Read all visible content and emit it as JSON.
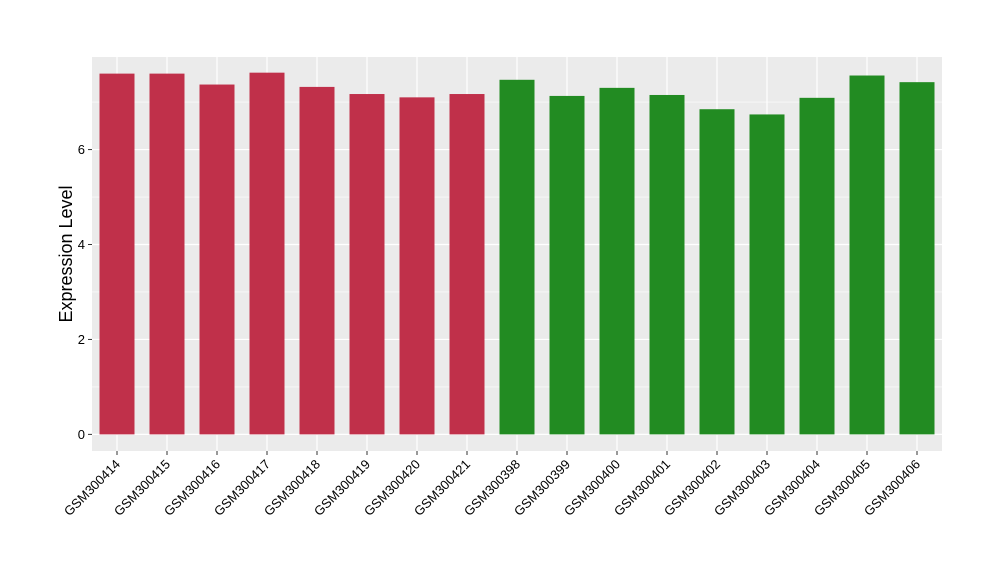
{
  "chart_data": {
    "type": "bar",
    "ylabel": "Expression Level",
    "xlabel": "",
    "ylim": [
      -0.35,
      7.95
    ],
    "yticks": [
      0,
      2,
      4,
      6
    ],
    "grid": true,
    "panel_background": "#ebebeb",
    "gridline_color": "#ffffff",
    "categories": [
      "GSM300414",
      "GSM300415",
      "GSM300416",
      "GSM300417",
      "GSM300418",
      "GSM300419",
      "GSM300420",
      "GSM300421",
      "GSM300398",
      "GSM300399",
      "GSM300400",
      "GSM300401",
      "GSM300402",
      "GSM300403",
      "GSM300404",
      "GSM300405",
      "GSM300406"
    ],
    "values": [
      7.6,
      7.6,
      7.37,
      7.62,
      7.32,
      7.17,
      7.1,
      7.17,
      7.47,
      7.13,
      7.3,
      7.15,
      6.85,
      6.74,
      7.09,
      7.56,
      7.42
    ],
    "bar_colors": [
      "#c0304a",
      "#c0304a",
      "#c0304a",
      "#c0304a",
      "#c0304a",
      "#c0304a",
      "#c0304a",
      "#c0304a",
      "#228b22",
      "#228b22",
      "#228b22",
      "#228b22",
      "#228b22",
      "#228b22",
      "#228b22",
      "#228b22",
      "#228b22"
    ]
  }
}
